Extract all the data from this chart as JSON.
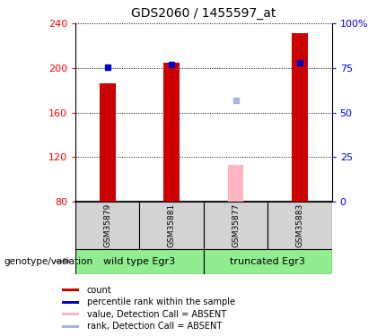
{
  "title": "GDS2060 / 1455597_at",
  "samples": [
    "GSM35879",
    "GSM35881",
    "GSM35877",
    "GSM35883"
  ],
  "bar_bottom": 80,
  "ylim": [
    80,
    240
  ],
  "yticks_left": [
    80,
    120,
    160,
    200,
    240
  ],
  "yticks_right": [
    0,
    25,
    50,
    75,
    100
  ],
  "bar_values": [
    186,
    205,
    null,
    231
  ],
  "rank_values": [
    201,
    203,
    null,
    205
  ],
  "absent_bar_value": 113,
  "absent_bar_color": "#ffb6c1",
  "absent_rank_value": 171,
  "absent_rank_color": "#b0b0e0",
  "absent_sample_index": 2,
  "bar_color": "#cc0000",
  "rank_color": "#0000cc",
  "bar_width": 0.25,
  "legend_items": [
    {
      "color": "#cc0000",
      "label": "count"
    },
    {
      "color": "#0000cc",
      "label": "percentile rank within the sample"
    },
    {
      "color": "#ffb6c1",
      "label": "value, Detection Call = ABSENT"
    },
    {
      "color": "#b0b0e0",
      "label": "rank, Detection Call = ABSENT"
    }
  ],
  "sample_box_color": "#d3d3d3",
  "group_box_color": "#90ee90",
  "xlabel": "genotype/variation",
  "groups_info": [
    {
      "label": "wild type Egr3",
      "start": 0,
      "end": 1
    },
    {
      "label": "truncated Egr3",
      "start": 2,
      "end": 3
    }
  ]
}
